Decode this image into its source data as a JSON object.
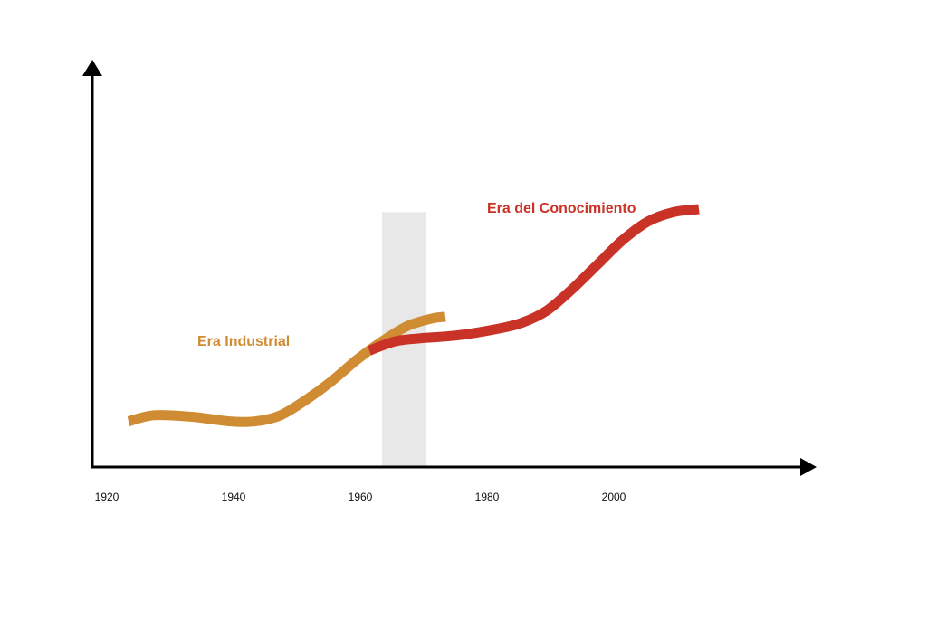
{
  "chart_data": {
    "type": "line",
    "title": "",
    "xlabel": "",
    "ylabel": "",
    "x_ticks": [
      "1920",
      "1940",
      "1960",
      "1980",
      "2000"
    ],
    "xlim": [
      1918,
      2036
    ],
    "ylim": [
      0,
      100
    ],
    "grid": false,
    "highlight_band": {
      "x_start": 1964,
      "x_end": 1971,
      "y_top": 79,
      "color": "#e8e8e8"
    },
    "series": [
      {
        "name": "Era Industrial",
        "color": "#d08c32",
        "x": [
          1924,
          1928,
          1934,
          1940,
          1944,
          1948,
          1952,
          1956,
          1960,
          1964,
          1968,
          1972,
          1974
        ],
        "values": [
          11,
          13,
          12.5,
          11,
          11,
          13,
          18,
          24,
          31,
          37,
          42,
          44.5,
          45
        ]
      },
      {
        "name": "Era del Conocimiento",
        "color": "#c93227",
        "x": [
          1962,
          1966,
          1970,
          1976,
          1982,
          1986,
          1990,
          1994,
          1998,
          2002,
          2006,
          2010,
          2014
        ],
        "values": [
          34,
          37,
          38,
          39,
          41,
          43,
          47,
          54,
          62,
          70,
          76,
          79,
          80
        ]
      }
    ]
  }
}
